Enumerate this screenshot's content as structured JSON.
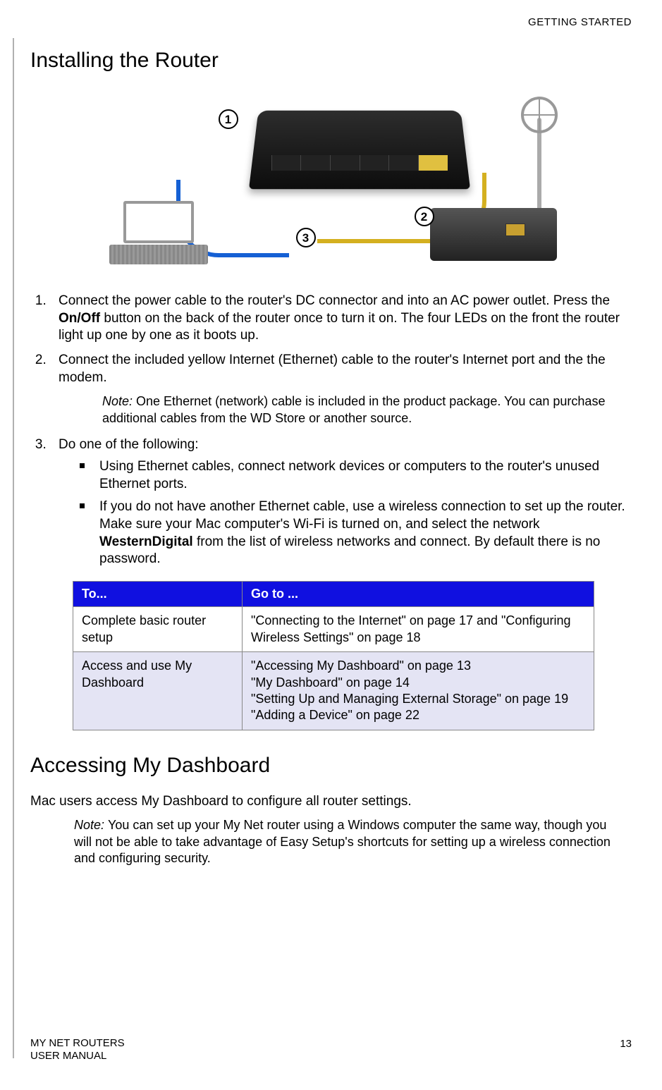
{
  "header": {
    "section_label": "GETTING STARTED"
  },
  "title1": "Installing the Router",
  "callouts": {
    "c1": "1",
    "c2": "2",
    "c3": "3"
  },
  "steps": {
    "s1_a": "Connect the power cable to the router's DC connector and into an AC power outlet. Press the ",
    "s1_bold": "On/Off",
    "s1_b": " button on the back of the router once to turn it on. The four LEDs on the front the router light up one by one as it boots up.",
    "s2": "Connect the included yellow Internet (Ethernet) cable to the router's Internet port and the the modem.",
    "note1_label": "Note:  ",
    "note1_text": "One Ethernet (network) cable is included in the product package. You can purchase additional cables from the WD Store or another source.",
    "s3_intro": "Do one of the following:",
    "s3_b1": "Using Ethernet cables, connect network devices or computers to the router's unused Ethernet ports.",
    "s3_b2_a": "If you do not have another Ethernet cable, use a wireless connection to set up the router. Make sure your Mac computer's Wi-Fi is turned on, and select the network ",
    "s3_b2_bold": "WesternDigital",
    "s3_b2_b": " from the list of wireless networks and connect. By default there is no password."
  },
  "table": {
    "header_bg": "#1010e0",
    "header_fg": "#ffffff",
    "alt_row_bg": "#e4e4f4",
    "col1_header": "To...",
    "col2_header": "Go to ...",
    "r1c1": "Complete basic router setup",
    "r1c2": "\"Connecting to the Internet\" on page 17 and \"Configuring Wireless Settings\" on page 18",
    "r2c1": "Access and use My Dashboard",
    "r2c2_l1": "\"Accessing My Dashboard\" on page 13",
    "r2c2_l2": "\"My Dashboard\" on page 14",
    "r2c2_l3": "\"Setting Up and Managing External Storage\" on page 19",
    "r2c2_l4": "\"Adding a Device\" on page 22"
  },
  "title2": "Accessing My Dashboard",
  "intro2": "Mac users access My Dashboard to configure all router settings.",
  "note2_label": "Note:  ",
  "note2_text": "You can set up your My Net router using a Windows computer the same way, though you will not be able to take advantage of Easy Setup's shortcuts for setting up a wireless connection and configuring security.",
  "footer": {
    "line1": "MY NET ROUTERS",
    "line2": "USER MANUAL",
    "page": "13"
  }
}
